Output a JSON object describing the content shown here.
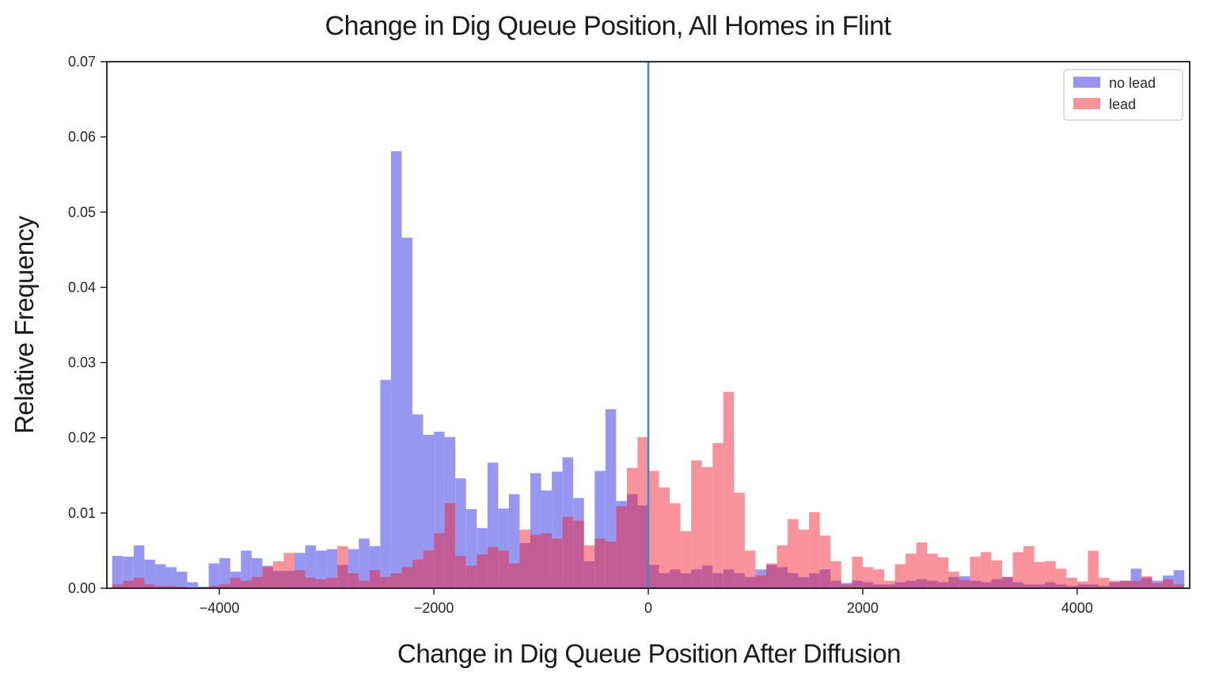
{
  "title": "Change in Dig Queue Position, All Homes in Flint",
  "x_axis": {
    "label": "Change in Dig Queue Position After Diffusion",
    "range": [
      -5050,
      5050
    ],
    "ticks": [
      {
        "value": -4000,
        "label": "−4000"
      },
      {
        "value": -2000,
        "label": "−2000"
      },
      {
        "value": 0,
        "label": "0"
      },
      {
        "value": 2000,
        "label": "2000"
      },
      {
        "value": 4000,
        "label": "4000"
      }
    ]
  },
  "y_axis": {
    "label": "Relative Frequency",
    "range": [
      0,
      0.07
    ],
    "ticks": [
      {
        "value": 0.0,
        "label": "0.00"
      },
      {
        "value": 0.01,
        "label": "0.01"
      },
      {
        "value": 0.02,
        "label": "0.02"
      },
      {
        "value": 0.03,
        "label": "0.03"
      },
      {
        "value": 0.04,
        "label": "0.04"
      },
      {
        "value": 0.05,
        "label": "0.05"
      },
      {
        "value": 0.06,
        "label": "0.06"
      },
      {
        "value": 0.07,
        "label": "0.07"
      }
    ]
  },
  "legend": {
    "items": [
      {
        "label": "no lead",
        "color": "#9797f2"
      },
      {
        "label": "lead",
        "color": "#f8939c"
      }
    ]
  },
  "colors": {
    "no_lead_fill": "#9797f2",
    "lead_fill": "rgba(240,25,45,0.47)",
    "zero_line": "#4489c4",
    "spine": "#1a1a1a",
    "background": "#ffffff"
  },
  "chart_data": {
    "type": "bar",
    "subtype": "overlaid-histogram",
    "title": "Change in Dig Queue Position, All Homes in Flint",
    "xlabel": "Change in Dig Queue Position After Diffusion",
    "ylabel": "Relative Frequency",
    "xlim": [
      -5050,
      5050
    ],
    "ylim": [
      0,
      0.07
    ],
    "grid": false,
    "legend_position": "upper right",
    "vline_x": 0,
    "bin_start": -5000,
    "bin_width": 100,
    "series": [
      {
        "name": "no lead",
        "id": "bars-no-lead",
        "fill": "#9797f2",
        "values": [
          0.0043,
          0.0042,
          0.0057,
          0.0038,
          0.0032,
          0.0028,
          0.0022,
          0.0008,
          0.0002,
          0.0033,
          0.004,
          0.0022,
          0.005,
          0.004,
          0.003,
          0.0023,
          0.0023,
          0.0047,
          0.0057,
          0.005,
          0.0052,
          0.0031,
          0.0052,
          0.0066,
          0.0056,
          0.0277,
          0.0581,
          0.0466,
          0.0231,
          0.0204,
          0.0208,
          0.0201,
          0.0146,
          0.0105,
          0.008,
          0.0167,
          0.0106,
          0.0125,
          0.006,
          0.0153,
          0.013,
          0.0155,
          0.0174,
          0.012,
          0.0036,
          0.0156,
          0.0238,
          0.0116,
          0.0125,
          0.011,
          0.0031,
          0.002,
          0.0025,
          0.002,
          0.0025,
          0.003,
          0.002,
          0.0025,
          0.002,
          0.0015,
          0.0025,
          0.0031,
          0.0028,
          0.002,
          0.0015,
          0.002,
          0.0025,
          0.001,
          0.0007,
          0.001,
          0.0008,
          0.0005,
          0.0005,
          0.0008,
          0.001,
          0.0012,
          0.001,
          0.0008,
          0.0015,
          0.0016,
          0.001,
          0.0008,
          0.0012,
          0.0015,
          0.0008,
          0.0005,
          0.0005,
          0.0008,
          0.0005,
          0.0003,
          0.0005,
          0.0005,
          0.0003,
          0.0008,
          0.001,
          0.0026,
          0.0014,
          0.001,
          0.0017,
          0.0024
        ]
      },
      {
        "name": "lead",
        "id": "bars-lead",
        "fill": "rgba(240,25,45,0.47)",
        "values": [
          0.0005,
          0.001,
          0.0014,
          0.0005,
          0.0003,
          0.0003,
          0.0002,
          0.0001,
          0.0001,
          0.0003,
          0.0005,
          0.0014,
          0.001,
          0.0015,
          0.0028,
          0.0036,
          0.0047,
          0.0024,
          0.0014,
          0.0012,
          0.0014,
          0.0056,
          0.002,
          0.001,
          0.0024,
          0.0015,
          0.002,
          0.0028,
          0.0038,
          0.005,
          0.0073,
          0.0113,
          0.0043,
          0.003,
          0.0045,
          0.0055,
          0.005,
          0.0033,
          0.0078,
          0.0071,
          0.0073,
          0.0066,
          0.0095,
          0.009,
          0.0057,
          0.0066,
          0.0062,
          0.0109,
          0.016,
          0.0201,
          0.0156,
          0.0134,
          0.0113,
          0.0076,
          0.017,
          0.0161,
          0.0193,
          0.0261,
          0.0127,
          0.005,
          0.0017,
          0.0033,
          0.0057,
          0.0092,
          0.0078,
          0.0101,
          0.007,
          0.0036,
          0.0005,
          0.0042,
          0.0028,
          0.0025,
          0.001,
          0.0032,
          0.0046,
          0.0061,
          0.0046,
          0.0041,
          0.0022,
          0.0011,
          0.0042,
          0.0048,
          0.0037,
          0.0015,
          0.0048,
          0.0056,
          0.0035,
          0.0036,
          0.0026,
          0.0014,
          0.0009,
          0.005,
          0.0014,
          0.001,
          0.001,
          0.001,
          0.0016,
          0.0007,
          0.0012,
          0.0005
        ]
      }
    ]
  }
}
